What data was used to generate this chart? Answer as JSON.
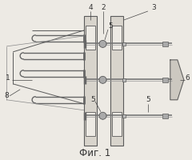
{
  "bg_color": "#edeae4",
  "line_color": "#5a5a5a",
  "label_color": "#333333",
  "title": "Фиг. 1",
  "title_fontsize": 8.5,
  "fig_width": 2.4,
  "fig_height": 2.0,
  "dpi": 100,
  "plate_fill": "#d8d4cc",
  "rod_color": "#888888"
}
